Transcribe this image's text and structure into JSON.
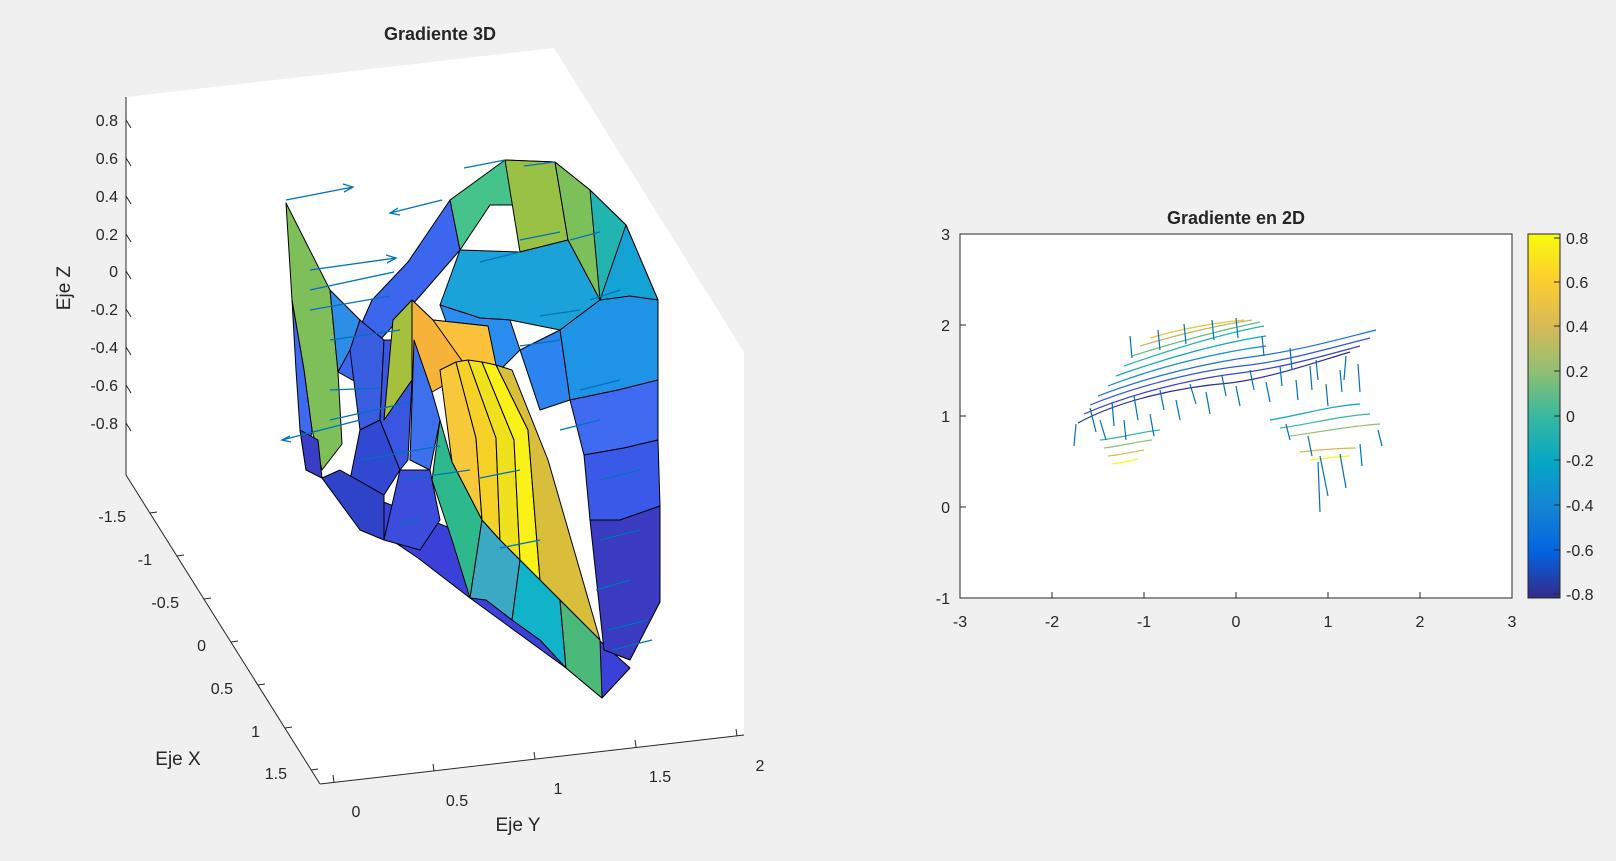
{
  "figure": {
    "background": "#f0f0f0"
  },
  "chart_data": [
    {
      "type": "surface",
      "title": "Gradiente 3D",
      "xlabel": "Eje X",
      "ylabel": "Eje Y",
      "zlabel": "Eje Z",
      "x_ticks": [
        "-1.5",
        "-1",
        "-0.5",
        "0",
        "0.5",
        "1",
        "1.5"
      ],
      "y_ticks": [
        "0",
        "0.5",
        "1",
        "1.5",
        "2"
      ],
      "z_ticks": [
        "0.8",
        "0.6",
        "0.4",
        "0.2",
        "0",
        "-0.2",
        "-0.4",
        "-0.6",
        "-0.8"
      ],
      "zlim": [
        -1,
        0.9
      ],
      "colormap": "parula",
      "quiver_color": "#0072bd",
      "grid": false
    },
    {
      "type": "contour+quiver",
      "title": "Gradiente en 2D",
      "x_ticks": [
        "-3",
        "-2",
        "-1",
        "0",
        "1",
        "2",
        "3"
      ],
      "y_ticks": [
        "3",
        "2",
        "1",
        "0",
        "-1"
      ],
      "xlim": [
        -3,
        3
      ],
      "ylim": [
        -1,
        3
      ],
      "colorbar": {
        "ticks": [
          "0.8",
          "0.6",
          "0.4",
          "0.2",
          "0",
          "-0.2",
          "-0.4",
          "-0.6",
          "-0.8"
        ],
        "range": [
          -0.85,
          0.85
        ],
        "colors": [
          "#352a87",
          "#0363e1",
          "#1485d4",
          "#06a7c6",
          "#38b99e",
          "#92bf73",
          "#d9ba56",
          "#fcce2e",
          "#f9fb0e"
        ]
      },
      "quiver_color": "#0072bd",
      "grid": false
    }
  ]
}
